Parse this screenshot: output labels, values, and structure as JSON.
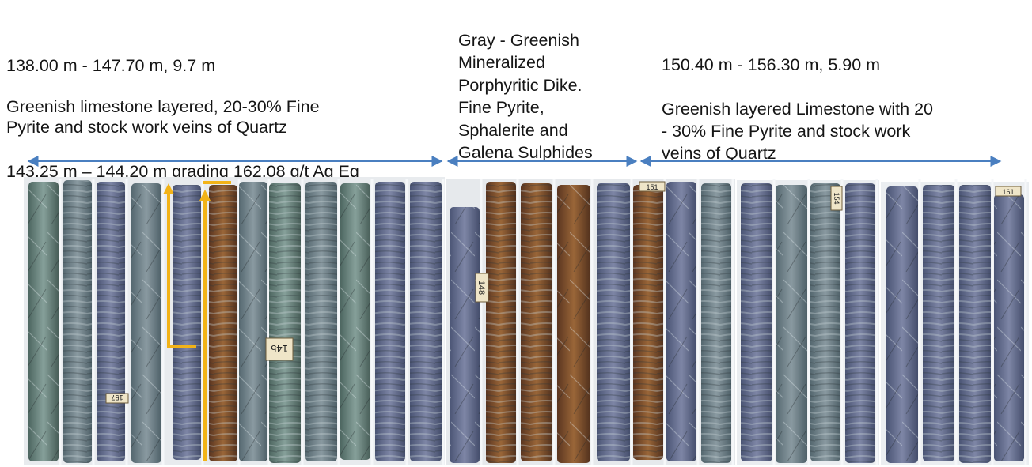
{
  "intervals": [
    {
      "id": "left",
      "depth_label": "138.00 m - 147.70 m, 9.7 m",
      "description": "Greenish limestone layered, 20-30% Fine\nPyrite and stock work veins of Quartz",
      "grade_note": "143.25 m – 144.20 m grading 162.08 g/t Ag Eq"
    },
    {
      "id": "middle",
      "description": "Gray - Greenish\nMineralized\nPorphyritic Dike.\nFine Pyrite,\nSphalerite and\nGalena Sulphides"
    },
    {
      "id": "right",
      "depth_label": "150.40 m - 156.30 m, 5.90 m",
      "description": "Greenish layered Limestone with 20\n- 30% Fine Pyrite and stock work\nveins of Quartz"
    }
  ],
  "core_tags": [
    "145",
    "148",
    "151",
    "154",
    "157",
    "161"
  ],
  "colors": {
    "arrow": "#4a7fc0",
    "highlight": "#f2b318",
    "limestone": "#6f7f86",
    "dike": "#7a4a2c",
    "tray": "#e9ecef"
  }
}
